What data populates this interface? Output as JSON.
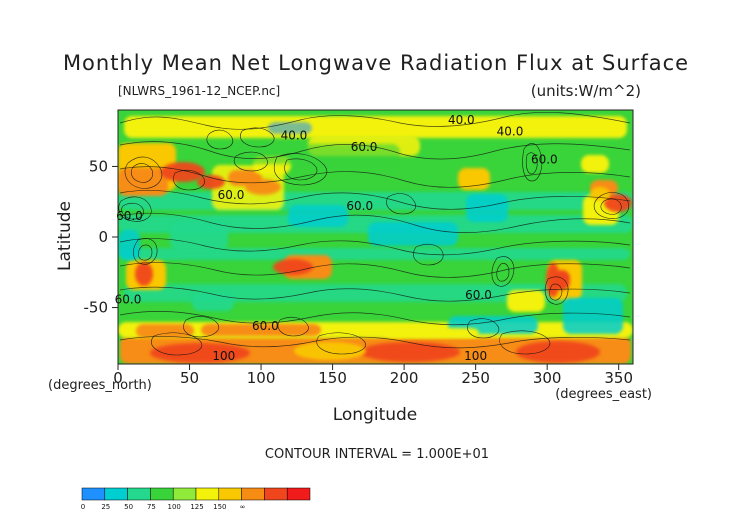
{
  "chart_data": {
    "type": "heatmap",
    "title": "Monthly Mean Net Longwave Radiation Flux at Surface",
    "subtitle": "[NLWRS_1961-12_NCEP.nc]",
    "units_label": "(units:W/m^2)",
    "xlabel": "Longitude",
    "ylabel": "Latitude",
    "x_axis_note": "(degrees_east)",
    "y_axis_note": "(degrees_north)",
    "contour_interval_text": "CONTOUR INTERVAL = 1.000E+01",
    "xlim": [
      0,
      360
    ],
    "ylim": [
      -90,
      90
    ],
    "x_ticks": [
      0,
      50,
      100,
      150,
      200,
      250,
      300,
      350
    ],
    "y_ticks": [
      -50,
      0,
      50
    ],
    "contour_labels": [
      {
        "text": "40.0",
        "lon": 123,
        "lat": 69
      },
      {
        "text": "60.0",
        "lon": 172,
        "lat": 61
      },
      {
        "text": "40.0",
        "lon": 240,
        "lat": 80
      },
      {
        "text": "40.0",
        "lon": 274,
        "lat": 72
      },
      {
        "text": "60.0",
        "lon": 298,
        "lat": 52
      },
      {
        "text": "60.0",
        "lon": 79,
        "lat": 27
      },
      {
        "text": "60.0",
        "lon": 8,
        "lat": 12
      },
      {
        "text": "60.0",
        "lon": 169,
        "lat": 19
      },
      {
        "text": "60.0",
        "lon": 7,
        "lat": -47
      },
      {
        "text": "60.0",
        "lon": 103,
        "lat": -66
      },
      {
        "text": "60.0",
        "lon": 252,
        "lat": -44
      },
      {
        "text": "100",
        "lon": 74,
        "lat": -87
      },
      {
        "text": "100",
        "lon": 250,
        "lat": -87
      }
    ],
    "legend": {
      "colors": [
        "#1E90FF",
        "#00CED1",
        "#24D98E",
        "#39D33A",
        "#8FEA3A",
        "#F2F20A",
        "#F9C800",
        "#F78C14",
        "#F0461D",
        "#F21B1B"
      ],
      "tick_labels": [
        "0",
        "25",
        "50",
        "75",
        "100",
        "125",
        "150",
        "∞"
      ]
    }
  }
}
